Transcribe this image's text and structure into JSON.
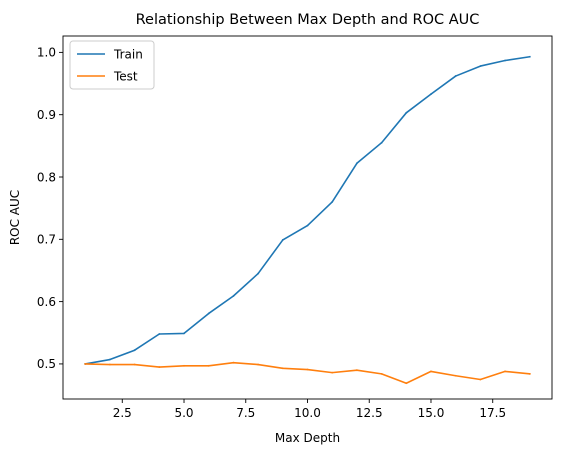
{
  "chart_data": {
    "type": "line",
    "title": "Relationship Between Max Depth and ROC AUC",
    "xlabel": "Max Depth",
    "ylabel": "ROC AUC",
    "xlim": [
      0.1,
      19.9
    ],
    "ylim": [
      0.4437,
      1.0263
    ],
    "xticks": [
      2.5,
      5.0,
      7.5,
      10.0,
      12.5,
      15.0,
      17.5
    ],
    "xtick_labels": [
      "2.5",
      "5.0",
      "7.5",
      "10.0",
      "12.5",
      "15.0",
      "17.5"
    ],
    "yticks": [
      0.5,
      0.6,
      0.7,
      0.8,
      0.9,
      1.0
    ],
    "ytick_labels": [
      "0.5",
      "0.6",
      "0.7",
      "0.8",
      "0.9",
      "1.0"
    ],
    "grid": false,
    "legend_position": "top-left",
    "x": [
      1,
      2,
      3,
      4,
      5,
      6,
      7,
      8,
      9,
      10,
      11,
      12,
      13,
      14,
      15,
      16,
      17,
      18,
      19
    ],
    "series": [
      {
        "name": "Train",
        "color": "#1f77b4",
        "values": [
          0.5,
          0.507,
          0.522,
          0.548,
          0.549,
          0.581,
          0.609,
          0.645,
          0.699,
          0.722,
          0.76,
          0.822,
          0.855,
          0.903,
          0.933,
          0.962,
          0.978,
          0.987,
          0.993
        ]
      },
      {
        "name": "Test",
        "color": "#ff7f0e",
        "values": [
          0.5,
          0.499,
          0.499,
          0.495,
          0.497,
          0.497,
          0.502,
          0.499,
          0.493,
          0.491,
          0.486,
          0.49,
          0.484,
          0.469,
          0.488,
          0.481,
          0.475,
          0.488,
          0.484
        ]
      }
    ]
  }
}
